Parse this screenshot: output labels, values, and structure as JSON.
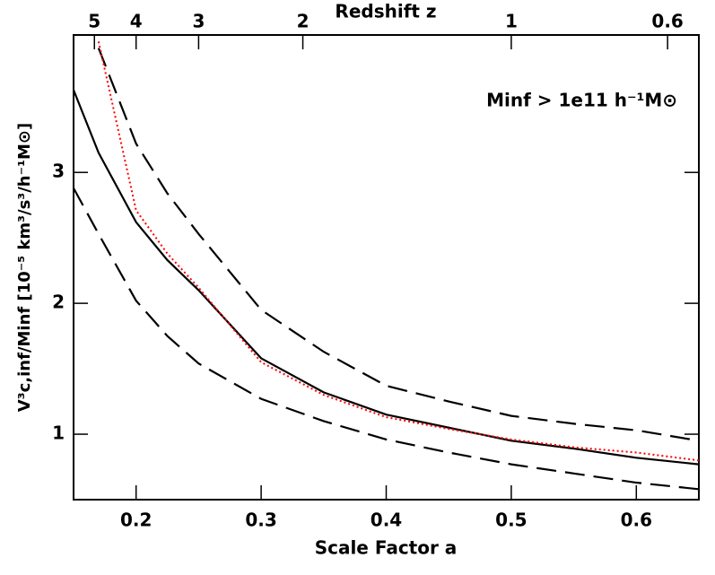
{
  "chart_data": {
    "type": "line",
    "xlabel": "Scale Factor a",
    "ylabel": "V³c,inf/Minf [10⁻⁵ km³/s³/h⁻¹M⊙]",
    "top_axis": {
      "label": "Redshift z",
      "ticks": [
        5,
        4,
        3,
        2,
        1,
        0.6
      ]
    },
    "annotation": "Minf > 1e11 h⁻¹M⊙",
    "x": [
      0.15,
      0.17,
      0.2,
      0.225,
      0.25,
      0.3,
      0.35,
      0.4,
      0.45,
      0.5,
      0.55,
      0.6,
      0.65
    ],
    "xlim": [
      0.15,
      0.65
    ],
    "xticks": [
      0.2,
      0.3,
      0.4,
      0.5,
      0.6
    ],
    "ylim": [
      0.5,
      4.05
    ],
    "yticks": [
      1,
      2,
      3
    ],
    "series": [
      {
        "color": "#000000",
        "dash": "solid",
        "values": [
          3.63,
          3.15,
          2.62,
          2.33,
          2.1,
          1.58,
          1.32,
          1.15,
          1.05,
          0.95,
          0.89,
          0.82,
          0.77
        ]
      },
      {
        "color": "#000000",
        "dash": "dashed",
        "values": [
          null,
          3.95,
          3.22,
          2.84,
          2.53,
          1.95,
          1.63,
          1.37,
          1.25,
          1.14,
          1.08,
          1.03,
          0.95
        ]
      },
      {
        "color": "#000000",
        "dash": "dashed",
        "values": [
          2.88,
          2.53,
          2.02,
          1.75,
          1.54,
          1.27,
          1.1,
          0.96,
          0.86,
          0.77,
          0.7,
          0.63,
          0.58
        ]
      },
      {
        "color": "#ff0000",
        "dash": "dotted",
        "values": [
          null,
          4.0,
          2.71,
          2.38,
          2.12,
          1.55,
          1.3,
          1.13,
          1.04,
          0.96,
          0.9,
          0.86,
          0.8
        ]
      }
    ]
  }
}
